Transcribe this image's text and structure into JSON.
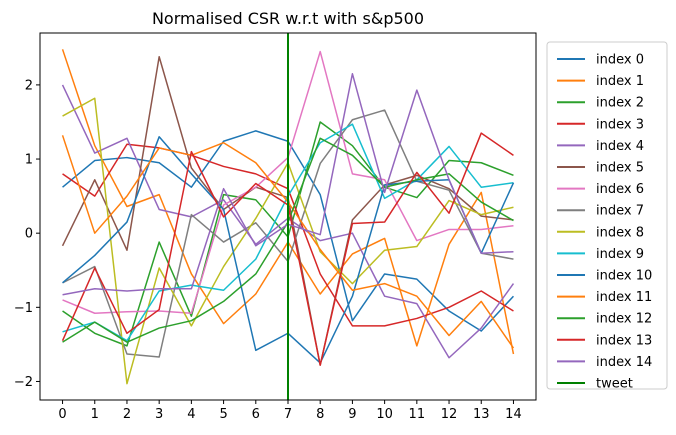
{
  "chart_data": {
    "type": "line",
    "title": "Normalised CSR w.r.t with s&p500",
    "xlabel": "",
    "ylabel": "",
    "x": [
      0,
      1,
      2,
      3,
      4,
      5,
      6,
      7,
      8,
      9,
      10,
      11,
      12,
      13,
      14
    ],
    "xlim": [
      -0.7,
      14.7
    ],
    "ylim": [
      -2.25,
      2.7
    ],
    "xticks": [
      0,
      1,
      2,
      3,
      4,
      5,
      6,
      7,
      8,
      9,
      10,
      11,
      12,
      13,
      14
    ],
    "yticks": [
      -2,
      -1,
      0,
      1,
      2
    ],
    "grid": false,
    "legend_position": "right",
    "series": [
      {
        "name": "index 0",
        "color": "#1f77b4",
        "values": [
          0.62,
          0.98,
          1.02,
          0.95,
          0.62,
          1.24,
          1.38,
          1.24,
          0.52,
          -1.18,
          -0.55,
          -0.62,
          -1.05,
          -1.32,
          -0.85
        ]
      },
      {
        "name": "index 1",
        "color": "#ff7f0e",
        "values": [
          2.48,
          1.18,
          0.36,
          0.52,
          -0.55,
          -1.22,
          -0.82,
          -0.12,
          -0.82,
          -0.28,
          -0.07,
          -1.52,
          -0.15,
          0.55,
          -1.63
        ]
      },
      {
        "name": "index 2",
        "color": "#2ca02c",
        "values": [
          -1.05,
          -1.35,
          -1.52,
          -0.12,
          -1.12,
          0.52,
          0.45,
          -0.05,
          1.5,
          1.18,
          0.62,
          0.48,
          0.98,
          0.95,
          0.78
        ]
      },
      {
        "name": "index 3",
        "color": "#d62728",
        "values": [
          0.8,
          0.5,
          1.2,
          1.15,
          1.05,
          0.9,
          0.8,
          0.6,
          -0.55,
          -1.25,
          -1.25,
          -1.15,
          -1.0,
          -0.78,
          -1.05
        ]
      },
      {
        "name": "index 4",
        "color": "#9467bd",
        "values": [
          2.0,
          1.08,
          1.28,
          0.32,
          0.22,
          0.45,
          -0.15,
          0.2,
          -0.1,
          -0.0,
          -0.85,
          -0.95,
          -1.68,
          -1.28,
          -0.68
        ]
      },
      {
        "name": "index 5",
        "color": "#8c564b",
        "values": [
          -0.17,
          0.72,
          -0.23,
          2.38,
          0.88,
          0.32,
          0.62,
          0.48,
          -1.78,
          0.18,
          0.65,
          0.78,
          0.6,
          0.23,
          0.18
        ]
      },
      {
        "name": "index 6",
        "color": "#e377c2",
        "values": [
          -0.9,
          -1.08,
          -1.06,
          -1.05,
          -1.08,
          0.38,
          0.62,
          1.02,
          2.45,
          0.8,
          0.72,
          -0.1,
          0.05,
          0.05,
          0.1
        ]
      },
      {
        "name": "index 7",
        "color": "#7f7f7f",
        "values": [
          -0.67,
          -0.45,
          -1.63,
          -1.67,
          0.25,
          -0.12,
          0.14,
          -0.38,
          0.94,
          1.53,
          1.66,
          0.7,
          0.58,
          -0.27,
          -0.35
        ]
      },
      {
        "name": "index 8",
        "color": "#bcbd22",
        "values": [
          1.58,
          1.82,
          -2.03,
          -0.47,
          -1.25,
          -0.45,
          0.2,
          0.95,
          -0.25,
          -0.68,
          -0.23,
          -0.18,
          0.44,
          0.25,
          0.35
        ]
      },
      {
        "name": "index 9",
        "color": "#17becf",
        "values": [
          -1.33,
          -1.2,
          -1.45,
          -0.78,
          -0.7,
          -0.77,
          -0.35,
          0.5,
          1.22,
          1.47,
          0.47,
          0.72,
          1.17,
          0.62,
          0.68
        ]
      },
      {
        "name": "index 10",
        "color": "#1f77b4",
        "values": [
          -0.67,
          -0.3,
          0.15,
          1.3,
          0.8,
          0.32,
          -1.58,
          -1.35,
          -1.75,
          -0.85,
          0.65,
          0.7,
          0.72,
          -0.27,
          0.68
        ]
      },
      {
        "name": "index 11",
        "color": "#ff7f0e",
        "values": [
          1.32,
          -0.0,
          0.5,
          1.15,
          1.05,
          1.22,
          0.95,
          0.42,
          -0.22,
          -0.77,
          -0.68,
          -0.85,
          -1.38,
          -0.92,
          -1.55
        ]
      },
      {
        "name": "index 12",
        "color": "#2ca02c",
        "values": [
          -1.47,
          -1.2,
          -1.47,
          -1.28,
          -1.18,
          -0.92,
          -0.55,
          0.15,
          1.28,
          1.05,
          0.62,
          0.72,
          0.8,
          0.42,
          0.17
        ]
      },
      {
        "name": "index 13",
        "color": "#d62728",
        "values": [
          -1.45,
          -0.47,
          -1.35,
          -1.03,
          1.1,
          0.22,
          0.67,
          0.38,
          -1.78,
          0.13,
          0.15,
          0.82,
          0.27,
          1.35,
          1.05
        ]
      },
      {
        "name": "index 14",
        "color": "#9467bd",
        "values": [
          -0.83,
          -0.75,
          -0.78,
          -0.75,
          -0.75,
          0.6,
          -0.17,
          0.12,
          -0.02,
          2.15,
          0.55,
          1.93,
          0.72,
          -0.27,
          -0.25
        ]
      }
    ],
    "vline": {
      "name": "tweet",
      "x": 7,
      "color": "#008000"
    }
  }
}
